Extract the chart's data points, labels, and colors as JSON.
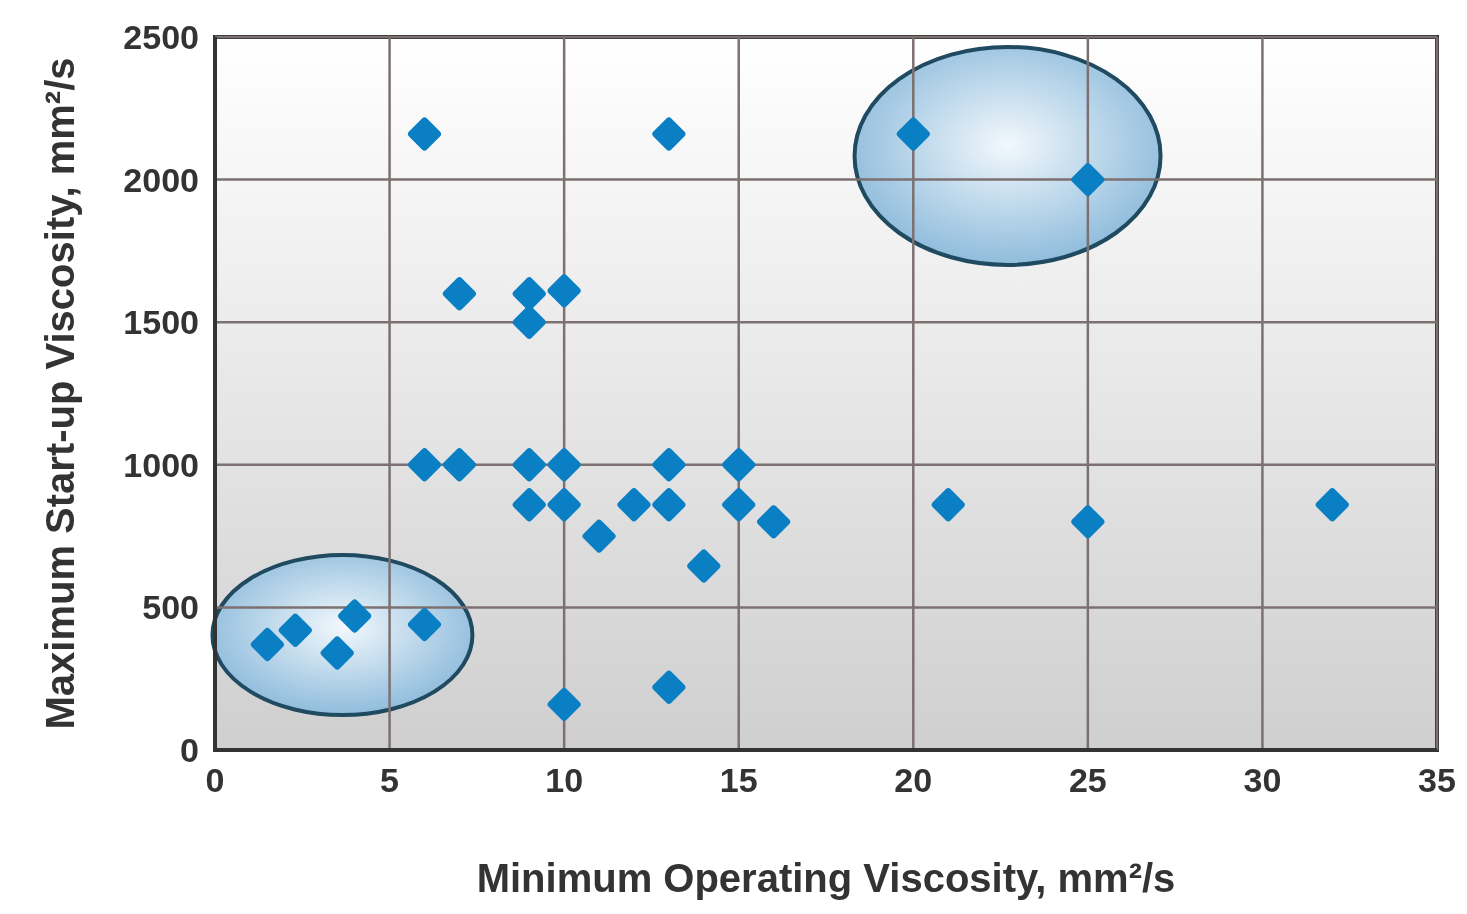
{
  "chart_data": {
    "type": "scatter",
    "xlabel": "Minimum Operating Viscosity, mm²/s",
    "ylabel": "Maximum Start-up Viscosity, mm²/s",
    "x": [
      6,
      13,
      20,
      25,
      7,
      9,
      10,
      9,
      6,
      7,
      9,
      10,
      13,
      15,
      9,
      10,
      12,
      13,
      15,
      21,
      32,
      11,
      16,
      25,
      14,
      10,
      13,
      1.5,
      2.3,
      3.5,
      4,
      6
    ],
    "values": [
      2160,
      2160,
      2160,
      2000,
      1600,
      1600,
      1610,
      1500,
      1000,
      1000,
      1000,
      1000,
      1000,
      1000,
      860,
      860,
      860,
      860,
      860,
      860,
      860,
      750,
      800,
      800,
      645,
      160,
      220,
      370,
      420,
      340,
      470,
      440
    ],
    "color": "#0a7fc4",
    "marker": "diamond",
    "grid": true,
    "xlim": [
      0,
      35
    ],
    "xticks": [
      0,
      5,
      10,
      15,
      20,
      25,
      30,
      35
    ],
    "ylim": [
      0,
      2500
    ],
    "yticks": [
      0,
      500,
      1000,
      1500,
      2000,
      2500
    ]
  }
}
